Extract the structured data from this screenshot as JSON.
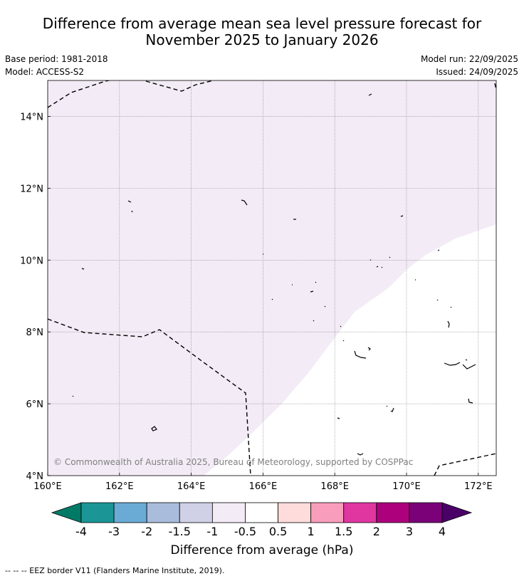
{
  "title_line1": "Difference from average mean sea level pressure forecast for",
  "title_line2": "November 2025 to January 2026",
  "base_period": "Base period: 1981-2018",
  "model": "Model: ACCESS-S2",
  "model_run": "Model run: 22/09/2025",
  "issued": "Issued: 24/09/2025",
  "map": {
    "lon_range": [
      160,
      172.5
    ],
    "lat_range": [
      4,
      15
    ],
    "x_ticks": [
      {
        "value": 160,
        "label": "160°E"
      },
      {
        "value": 162,
        "label": "162°E"
      },
      {
        "value": 164,
        "label": "164°E"
      },
      {
        "value": 166,
        "label": "166°E"
      },
      {
        "value": 168,
        "label": "168°E"
      },
      {
        "value": 170,
        "label": "170°E"
      },
      {
        "value": 172,
        "label": "172°E"
      }
    ],
    "y_ticks": [
      {
        "value": 4,
        "label": "4°N"
      },
      {
        "value": 6,
        "label": "6°N"
      },
      {
        "value": 8,
        "label": "8°N"
      },
      {
        "value": 10,
        "label": "10°N"
      },
      {
        "value": 12,
        "label": "12°N"
      },
      {
        "value": 14,
        "label": "14°N"
      }
    ],
    "grid": true,
    "shaded_color": "#f3ebf5",
    "copyright": "© Commonwealth of Australia 2025, Bureau of Meteorology, supported by COSPPac"
  },
  "colorbar": {
    "title": "Difference from average (hPa)",
    "ticks": [
      "-4",
      "-3",
      "-2",
      "-1.5",
      "-1",
      "-0.5",
      "0.5",
      "1",
      "1.5",
      "2",
      "3",
      "4"
    ],
    "low_extend_color": "#007a67",
    "high_extend_color": "#4b0068",
    "colors": [
      "#1b9596",
      "#6aabd5",
      "#a9bcdc",
      "#d0d1e7",
      "#f3ebf5",
      "#ffffff",
      "#fedcdc",
      "#f89dbb",
      "#df36a0",
      "#ad007d",
      "#7a0178"
    ]
  },
  "footnote": "--  --  -- EEZ border V11 (Flanders Marine Institute, 2019)."
}
